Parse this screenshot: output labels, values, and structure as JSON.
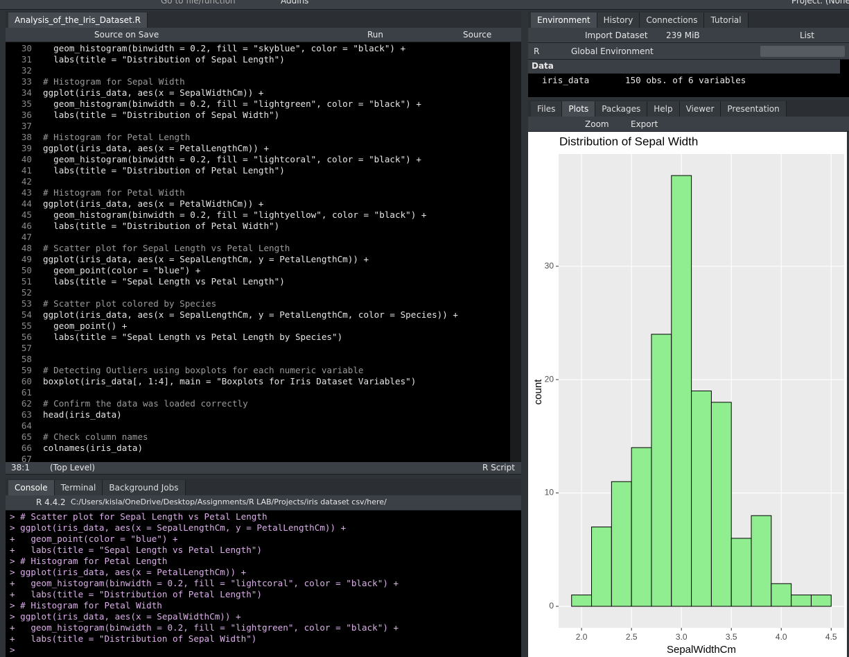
{
  "top_bar": {
    "goto": "Go to file/function",
    "addins": "Addins",
    "project": "Project: (None)"
  },
  "editor": {
    "tab": "Analysis_of_the_Iris_Dataset.R",
    "toolbar": {
      "source_on_save": "Source on Save",
      "run": "Run",
      "source": "Source"
    },
    "lines": [
      {
        "n": 30,
        "code": "  geom_histogram(binwidth = 0.2, fill = \"skyblue\", color = \"black\") +"
      },
      {
        "n": 31,
        "code": "  labs(title = \"Distribution of Sepal Length\")"
      },
      {
        "n": 32
      },
      {
        "n": 33,
        "code": "# Histogram for Sepal Width"
      },
      {
        "n": 34,
        "code": "ggplot(iris_data, aes(x = SepalWidthCm)) +"
      },
      {
        "n": 35,
        "code": "  geom_histogram(binwidth = 0.2, fill = \"lightgreen\", color = \"black\") +"
      },
      {
        "n": 36,
        "code": "  labs(title = \"Distribution of Sepal Width\")"
      },
      {
        "n": 37
      },
      {
        "n": 38,
        "code": "# Histogram for Petal Length"
      },
      {
        "n": 39,
        "code": "ggplot(iris_data, aes(x = PetalLengthCm)) +"
      },
      {
        "n": 40,
        "code": "  geom_histogram(binwidth = 0.2, fill = \"lightcoral\", color = \"black\") +"
      },
      {
        "n": 41,
        "code": "  labs(title = \"Distribution of Petal Length\")"
      },
      {
        "n": 42
      },
      {
        "n": 43,
        "code": "# Histogram for Petal Width"
      },
      {
        "n": 44,
        "code": "ggplot(iris_data, aes(x = PetalWidthCm)) +"
      },
      {
        "n": 45,
        "code": "  geom_histogram(binwidth = 0.2, fill = \"lightyellow\", color = \"black\") +"
      },
      {
        "n": 46,
        "code": "  labs(title = \"Distribution of Petal Width\")"
      },
      {
        "n": 47
      },
      {
        "n": 48,
        "code": "# Scatter plot for Sepal Length vs Petal Length"
      },
      {
        "n": 49,
        "code": "ggplot(iris_data, aes(x = SepalLengthCm, y = PetalLengthCm)) +"
      },
      {
        "n": 50,
        "code": "  geom_point(color = \"blue\") +"
      },
      {
        "n": 51,
        "code": "  labs(title = \"Sepal Length vs Petal Length\")"
      },
      {
        "n": 52
      },
      {
        "n": 53,
        "code": "# Scatter plot colored by Species"
      },
      {
        "n": 54,
        "code": "ggplot(iris_data, aes(x = SepalLengthCm, y = PetalLengthCm, color = Species)) +"
      },
      {
        "n": 55,
        "code": "  geom_point() +"
      },
      {
        "n": 56,
        "code": "  labs(title = \"Sepal Length vs Petal Length by Species\")"
      },
      {
        "n": 57
      },
      {
        "n": 58
      },
      {
        "n": 59,
        "code": "# Detecting Outliers using boxplots for each numeric variable"
      },
      {
        "n": 60,
        "code": "boxplot(iris_data[, 1:4], main = \"Boxplots for Iris Dataset Variables\")"
      },
      {
        "n": 61
      },
      {
        "n": 62,
        "code": "# Confirm the data was loaded correctly"
      },
      {
        "n": 63,
        "code": "head(iris_data)"
      },
      {
        "n": 64
      },
      {
        "n": 65,
        "code": "# Check column names"
      },
      {
        "n": 66,
        "code": "colnames(iris_data)"
      },
      {
        "n": 67
      }
    ],
    "status": {
      "position": "38:1",
      "scope": "(Top Level)",
      "file_type": "R Script"
    }
  },
  "console": {
    "tabs": [
      "Console",
      "Terminal",
      "Background Jobs"
    ],
    "version": "R 4.4.2",
    "path": "C:/Users/kisla/OneDrive/Desktop/Assignments/R LAB/Projects/iris dataset csv/here/",
    "lines": [
      "> # Scatter plot for Sepal Length vs Petal Length",
      "> ggplot(iris_data, aes(x = SepalLengthCm, y = PetalLengthCm)) +",
      "+   geom_point(color = \"blue\") +",
      "+   labs(title = \"Sepal Length vs Petal Length\")",
      "> # Histogram for Petal Length",
      "> ggplot(iris_data, aes(x = PetalLengthCm)) +",
      "+   geom_histogram(binwidth = 0.2, fill = \"lightcoral\", color = \"black\") +",
      "+   labs(title = \"Distribution of Petal Length\")",
      "> # Histogram for Petal Width",
      "> ggplot(iris_data, aes(x = SepalWidthCm)) +",
      "+   geom_histogram(binwidth = 0.2, fill = \"lightgreen\", color = \"black\") +",
      "+   labs(title = \"Distribution of Sepal Width\")",
      ">"
    ]
  },
  "environment": {
    "tabs": [
      "Environment",
      "History",
      "Connections",
      "Tutorial"
    ],
    "toolbar": {
      "import": "Import Dataset",
      "memory": "239 MiB",
      "view": "List",
      "language": "R",
      "scope": "Global Environment"
    },
    "section": "Data",
    "rows": [
      {
        "name": "iris_data",
        "value": "150 obs. of 6 variables"
      }
    ]
  },
  "files_pane": {
    "tabs": [
      "Files",
      "Plots",
      "Packages",
      "Help",
      "Viewer",
      "Presentation"
    ],
    "toolbar": {
      "zoom": "Zoom",
      "export": "Export"
    }
  },
  "chart_data": {
    "type": "histogram",
    "title": "Distribution of Sepal Width",
    "x_label": "SepalWidthCm",
    "y_label": "count",
    "bins": [
      1.9,
      2.1,
      2.3,
      2.5,
      2.7,
      2.9,
      3.1,
      3.3,
      3.5,
      3.7,
      3.9,
      4.1,
      4.3,
      4.5
    ],
    "counts": [
      1,
      7,
      11,
      14,
      24,
      38,
      19,
      18,
      6,
      8,
      2,
      1,
      1
    ],
    "color": "#90ee90",
    "edge_color": "#000000",
    "xlim": [
      1.77,
      4.63
    ],
    "ylim": [
      -1.9,
      39.9
    ],
    "xticks": [
      {
        "value": 2,
        "label": "2.0"
      },
      2.5,
      {
        "value": 3,
        "label": "3.0"
      },
      3.5,
      {
        "value": 4,
        "label": "4.0"
      },
      4.5
    ],
    "yticks": [
      0,
      10,
      20,
      30
    ],
    "grid": true
  }
}
